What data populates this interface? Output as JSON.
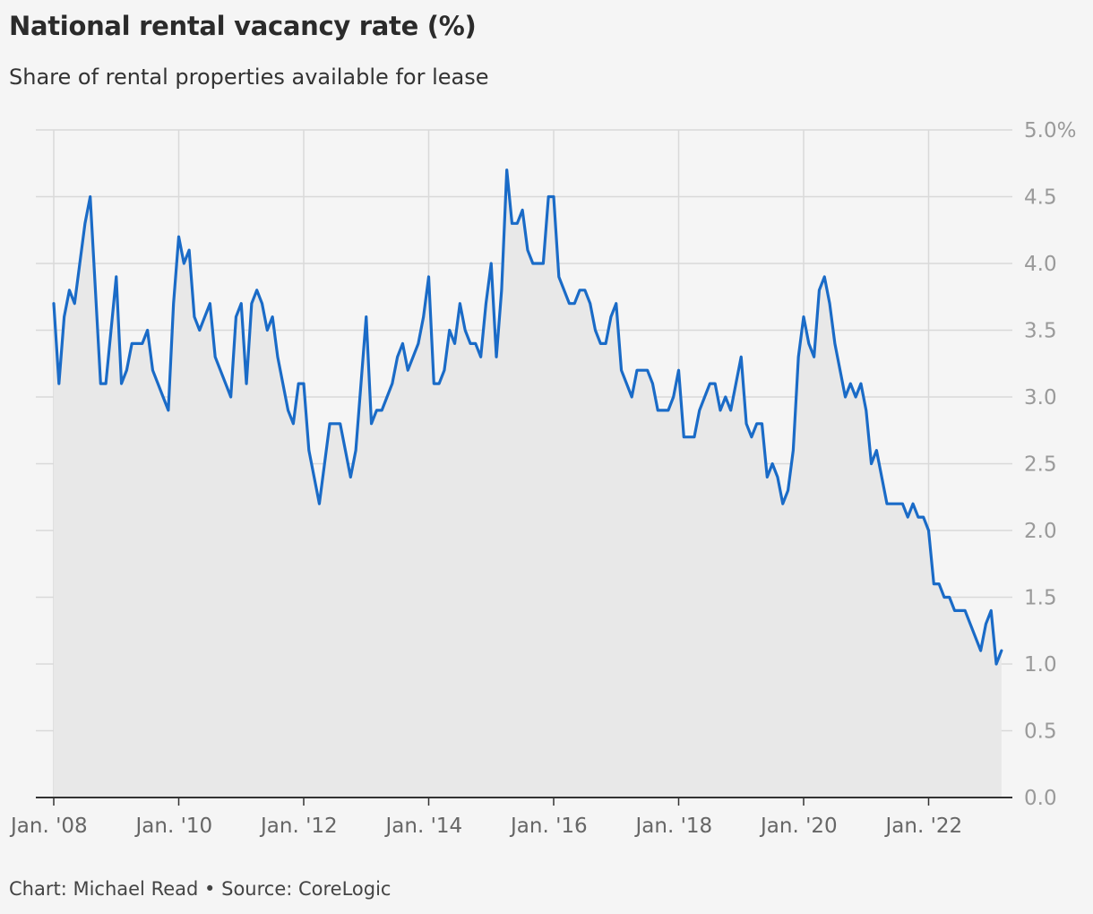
{
  "title": "National rental vacancy rate (%)",
  "subtitle": "Share of rental properties available for lease",
  "footer": {
    "credit": "Chart: Michael Read",
    "separator": "•",
    "source": "Source: CoreLogic"
  },
  "colors": {
    "line": "#1a6bc7",
    "area": "#e8e8e8",
    "grid": "#d9d9d9",
    "axis": "#333333"
  },
  "chart_data": {
    "type": "area",
    "title": "National rental vacancy rate (%)",
    "subtitle": "Share of rental properties available for lease",
    "start": "2008-01",
    "frequency": "monthly",
    "ylim": [
      0,
      5
    ],
    "y_ticks": [
      0,
      0.5,
      1,
      1.5,
      2,
      2.5,
      3,
      3.5,
      4,
      4.5,
      5
    ],
    "y_tick_labels": [
      "0.0",
      "0.5",
      "1.0",
      "1.5",
      "2.0",
      "2.5",
      "3.0",
      "3.5",
      "4.0",
      "4.5",
      "5.0%"
    ],
    "x_ticks": [
      "2008-01",
      "2010-01",
      "2012-01",
      "2014-01",
      "2016-01",
      "2018-01",
      "2020-01",
      "2022-01"
    ],
    "x_tick_labels": [
      "Jan. '08",
      "Jan. '10",
      "Jan. '12",
      "Jan. '14",
      "Jan. '16",
      "Jan. '18",
      "Jan. '20",
      "Jan. '22"
    ],
    "y_axis_side": "right",
    "grid": true,
    "series": [
      {
        "values": [
          3.7,
          3.1,
          3.6,
          3.8,
          3.7,
          4.0,
          4.3,
          4.5,
          3.8,
          3.1,
          3.1,
          3.5,
          3.9,
          3.1,
          3.2,
          3.4,
          3.4,
          3.4,
          3.5,
          3.2,
          3.1,
          3.0,
          2.9,
          3.7,
          4.2,
          4.0,
          4.1,
          3.6,
          3.5,
          3.6,
          3.7,
          3.3,
          3.2,
          3.1,
          3.0,
          3.6,
          3.7,
          3.1,
          3.7,
          3.8,
          3.7,
          3.5,
          3.6,
          3.3,
          3.1,
          2.9,
          2.8,
          3.1,
          3.1,
          2.6,
          2.4,
          2.2,
          2.5,
          2.8,
          2.8,
          2.8,
          2.6,
          2.4,
          2.6,
          3.1,
          3.6,
          2.8,
          2.9,
          2.9,
          3.0,
          3.1,
          3.3,
          3.4,
          3.2,
          3.3,
          3.4,
          3.6,
          3.9,
          3.1,
          3.1,
          3.2,
          3.5,
          3.4,
          3.7,
          3.5,
          3.4,
          3.4,
          3.3,
          3.7,
          4.0,
          3.3,
          3.8,
          4.7,
          4.3,
          4.3,
          4.4,
          4.1,
          4.0,
          4.0,
          4.0,
          4.5,
          4.5,
          3.9,
          3.8,
          3.7,
          3.7,
          3.8,
          3.8,
          3.7,
          3.5,
          3.4,
          3.4,
          3.6,
          3.7,
          3.2,
          3.1,
          3.0,
          3.2,
          3.2,
          3.2,
          3.1,
          2.9,
          2.9,
          2.9,
          3.0,
          3.2,
          2.7,
          2.7,
          2.7,
          2.9,
          3.0,
          3.1,
          3.1,
          2.9,
          3.0,
          2.9,
          3.1,
          3.3,
          2.8,
          2.7,
          2.8,
          2.8,
          2.4,
          2.5,
          2.4,
          2.2,
          2.3,
          2.6,
          3.3,
          3.6,
          3.4,
          3.3,
          3.8,
          3.9,
          3.7,
          3.4,
          3.2,
          3.0,
          3.1,
          3.0,
          3.1,
          2.9,
          2.5,
          2.6,
          2.4,
          2.2,
          2.2,
          2.2,
          2.2,
          2.1,
          2.2,
          2.1,
          2.1,
          2.0,
          1.6,
          1.6,
          1.5,
          1.5,
          1.4,
          1.4,
          1.4,
          1.3,
          1.2,
          1.1,
          1.3,
          1.4,
          1.0,
          1.1
        ]
      }
    ]
  }
}
